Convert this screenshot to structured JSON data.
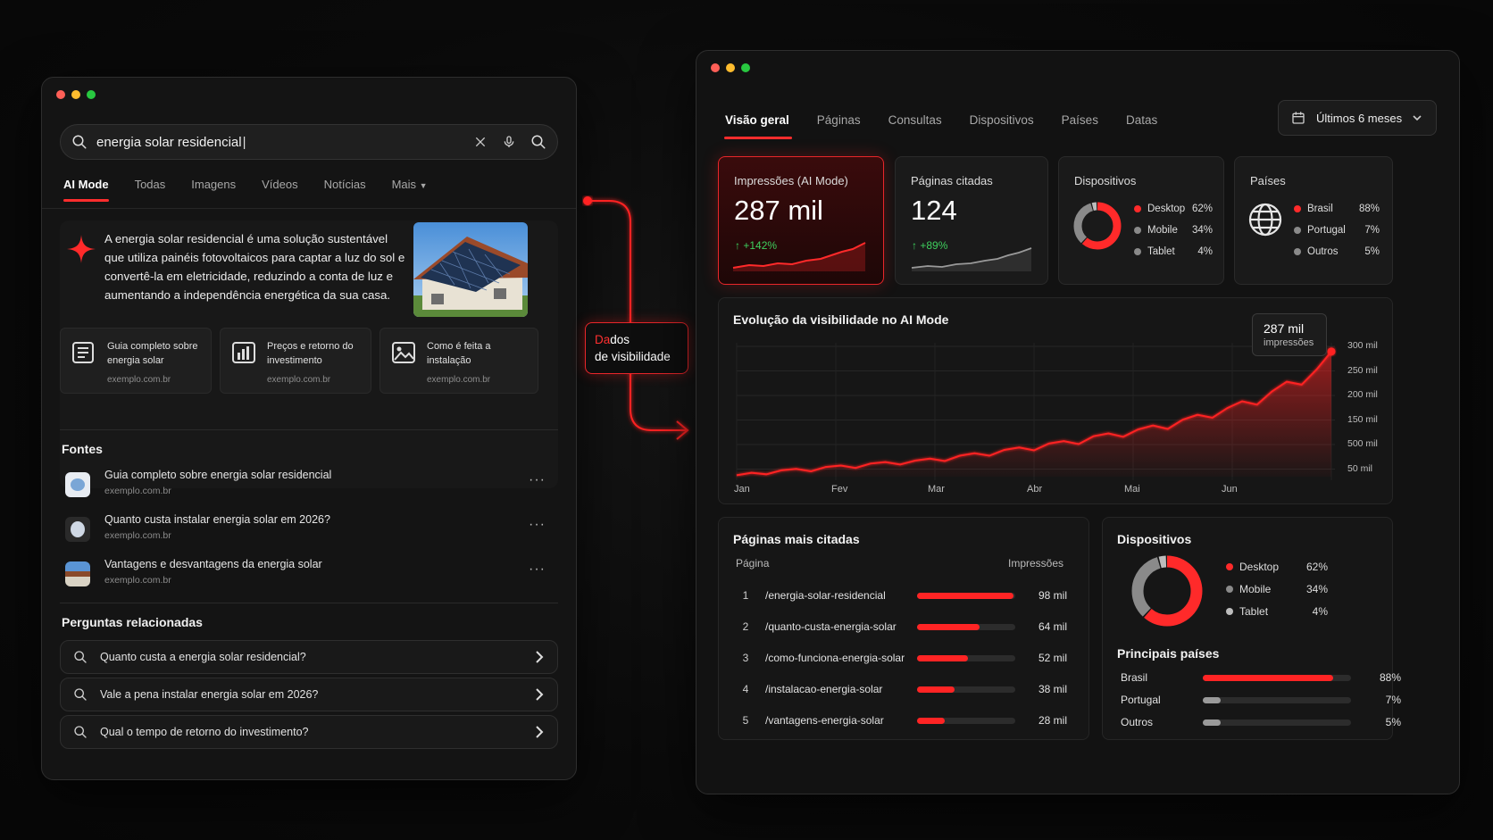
{
  "search": {
    "query": "energia solar residencial",
    "tabs": [
      "AI Mode",
      "Todas",
      "Imagens",
      "Vídeos",
      "Notícias",
      "Mais"
    ],
    "ai_overview": "A energia solar residencial é uma solução sustentável que utiliza painéis fotovoltaicos para captar a luz do sol e convertê-la em eletricidade, reduzindo a conta de luz e aumentando a independência energética da sua casa.",
    "cards": [
      {
        "title": "Guia completo sobre energia solar",
        "domain": "exemplo.com.br",
        "icon": "document-icon"
      },
      {
        "title": "Preços e retorno do investimento",
        "domain": "exemplo.com.br",
        "icon": "bar-chart-icon"
      },
      {
        "title": "Como é feita a instalação",
        "domain": "exemplo.com.br",
        "icon": "image-icon"
      }
    ],
    "sources_title": "Fontes",
    "sources": [
      {
        "title": "Guia completo sobre energia solar residencial",
        "domain": "exemplo.com.br"
      },
      {
        "title": "Quanto custa instalar energia solar em 2026?",
        "domain": "exemplo.com.br"
      },
      {
        "title": "Vantagens e desvantagens da energia solar",
        "domain": "exemplo.com.br"
      }
    ],
    "related_title": "Perguntas relacionadas",
    "related": [
      "Quanto custa a energia solar residencial?",
      "Vale a pena instalar energia solar em 2026?",
      "Qual o tempo de retorno do investimento?"
    ]
  },
  "callout": {
    "highlight": "Da",
    "rest": "dos",
    "line2": "de visibilidade"
  },
  "dashboard": {
    "tabs": [
      "Visão geral",
      "Páginas",
      "Consultas",
      "Dispositivos",
      "Países",
      "Datas"
    ],
    "date_range": "Últimos 6 meses",
    "kpis": {
      "impressions": {
        "title": "Impressões (AI Mode)",
        "value": "287 mil",
        "delta": "+142%"
      },
      "pages": {
        "title": "Páginas citadas",
        "value": "124",
        "delta": "+89%"
      },
      "devices": {
        "title": "Dispositivos",
        "items": [
          {
            "name": "Desktop",
            "pct": "62%",
            "value": 62,
            "color": "#ff2a2a"
          },
          {
            "name": "Mobile",
            "pct": "34%",
            "value": 34,
            "color": "#8a8a8a"
          },
          {
            "name": "Tablet",
            "pct": "4%",
            "value": 4,
            "color": "#bdbdbd"
          }
        ]
      },
      "countries": {
        "title": "Países",
        "items": [
          {
            "name": "Brasil",
            "pct": "88%",
            "color": "#ff2a2a"
          },
          {
            "name": "Portugal",
            "pct": "7%",
            "color": "#8a8a8a"
          },
          {
            "name": "Outros",
            "pct": "5%",
            "color": "#8a8a8a"
          }
        ]
      }
    },
    "visibility": {
      "title": "Evolução da visibilidade no AI Mode",
      "tooltip_value": "287 mil",
      "tooltip_label": "impressões"
    },
    "top_pages": {
      "title": "Páginas mais citadas",
      "col_page": "Página",
      "col_impr": "Impressões",
      "rows": [
        {
          "rank": "1",
          "page": "/energia-solar-residencial",
          "value": "98 mil",
          "num": 98
        },
        {
          "rank": "2",
          "page": "/quanto-custa-energia-solar",
          "value": "64 mil",
          "num": 64
        },
        {
          "rank": "3",
          "page": "/como-funciona-energia-solar",
          "value": "52 mil",
          "num": 52
        },
        {
          "rank": "4",
          "page": "/instalacao-energia-solar",
          "value": "38 mil",
          "num": 38
        },
        {
          "rank": "5",
          "page": "/vantagens-energia-solar",
          "value": "28 mil",
          "num": 28
        }
      ]
    },
    "devices_panel": {
      "title": "Dispositivos",
      "countries_title": "Principais países",
      "countries": [
        {
          "name": "Brasil",
          "pct": "88%",
          "value": 88,
          "color": "#ff2424"
        },
        {
          "name": "Portugal",
          "pct": "7%",
          "value": 7,
          "color": "#9a9a9a"
        },
        {
          "name": "Outros",
          "pct": "5%",
          "value": 5,
          "color": "#9a9a9a"
        }
      ]
    }
  },
  "chart_data": {
    "type": "area",
    "title": "Evolução da visibilidade no AI Mode",
    "x_ticks": [
      "Jan",
      "Fev",
      "Mar",
      "Abr",
      "Mai",
      "Jun"
    ],
    "y_ticks": [
      "300 mil",
      "250 mil",
      "200 mil",
      "150 mil",
      "500 mil",
      "50 mil"
    ],
    "ylim": [
      25,
      300
    ],
    "series": [
      {
        "color": "#ff2424",
        "x": [
          0,
          0.15,
          0.3,
          0.45,
          0.6,
          0.75,
          0.9,
          1.05,
          1.2,
          1.35,
          1.5,
          1.65,
          1.8,
          1.95,
          2.1,
          2.25,
          2.4,
          2.55,
          2.7,
          2.85,
          3.0,
          3.15,
          3.3,
          3.45,
          3.6,
          3.75,
          3.9,
          4.05,
          4.2,
          4.35,
          4.5,
          4.65,
          4.8,
          4.95,
          5.1,
          5.25,
          5.4,
          5.55,
          5.7,
          5.85,
          6.0
        ],
        "values": [
          28,
          33,
          30,
          38,
          41,
          36,
          45,
          48,
          43,
          52,
          55,
          50,
          58,
          62,
          57,
          68,
          73,
          68,
          80,
          85,
          79,
          93,
          98,
          92,
          108,
          114,
          107,
          122,
          130,
          123,
          142,
          152,
          146,
          166,
          180,
          173,
          200,
          220,
          214,
          245,
          282
        ]
      }
    ]
  }
}
